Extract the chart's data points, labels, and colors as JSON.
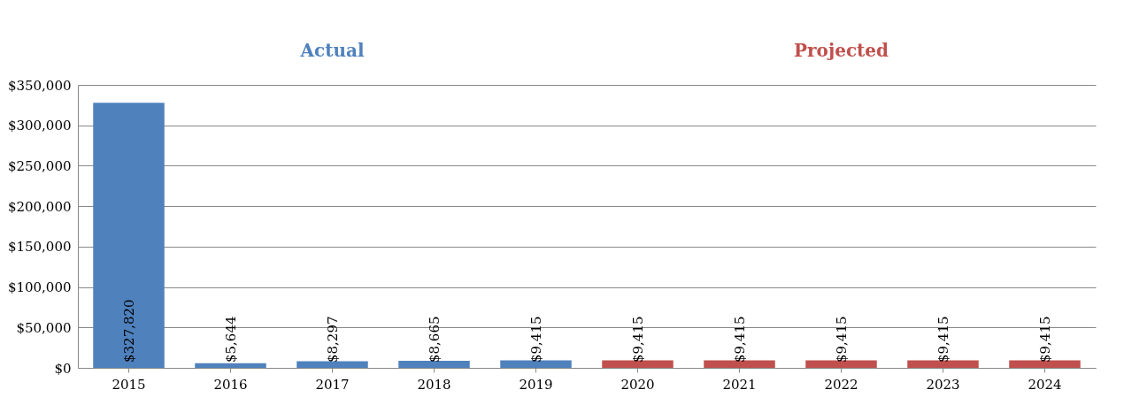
{
  "chart_data": {
    "type": "bar",
    "categories": [
      "2015",
      "2016",
      "2017",
      "2018",
      "2019",
      "2020",
      "2021",
      "2022",
      "2023",
      "2024"
    ],
    "series": [
      {
        "name": "Actual",
        "color": "#4f81bd",
        "values": [
          327820,
          5644,
          8297,
          8665,
          9415,
          null,
          null,
          null,
          null,
          null
        ],
        "value_labels": [
          "$327,820",
          "$5,644",
          "$8,297",
          "$8,665",
          "$9,415",
          null,
          null,
          null,
          null,
          null
        ]
      },
      {
        "name": "Projected",
        "color": "#c0504d",
        "values": [
          null,
          null,
          null,
          null,
          null,
          9415,
          9415,
          9415,
          9415,
          9415
        ],
        "value_labels": [
          null,
          null,
          null,
          null,
          null,
          "$9,415",
          "$9,415",
          "$9,415",
          "$9,415",
          "$9,415"
        ]
      }
    ],
    "ylim": [
      0,
      350000
    ],
    "yticks": [
      {
        "value": 0,
        "label": "$0"
      },
      {
        "value": 50000,
        "label": "$50,000"
      },
      {
        "value": 100000,
        "label": "$100,000"
      },
      {
        "value": 150000,
        "label": "$150,000"
      },
      {
        "value": 200000,
        "label": "$200,000"
      },
      {
        "value": 250000,
        "label": "$250,000"
      },
      {
        "value": 300000,
        "label": "$300,000"
      },
      {
        "value": 350000,
        "label": "$350,000"
      }
    ],
    "grid": "y"
  }
}
